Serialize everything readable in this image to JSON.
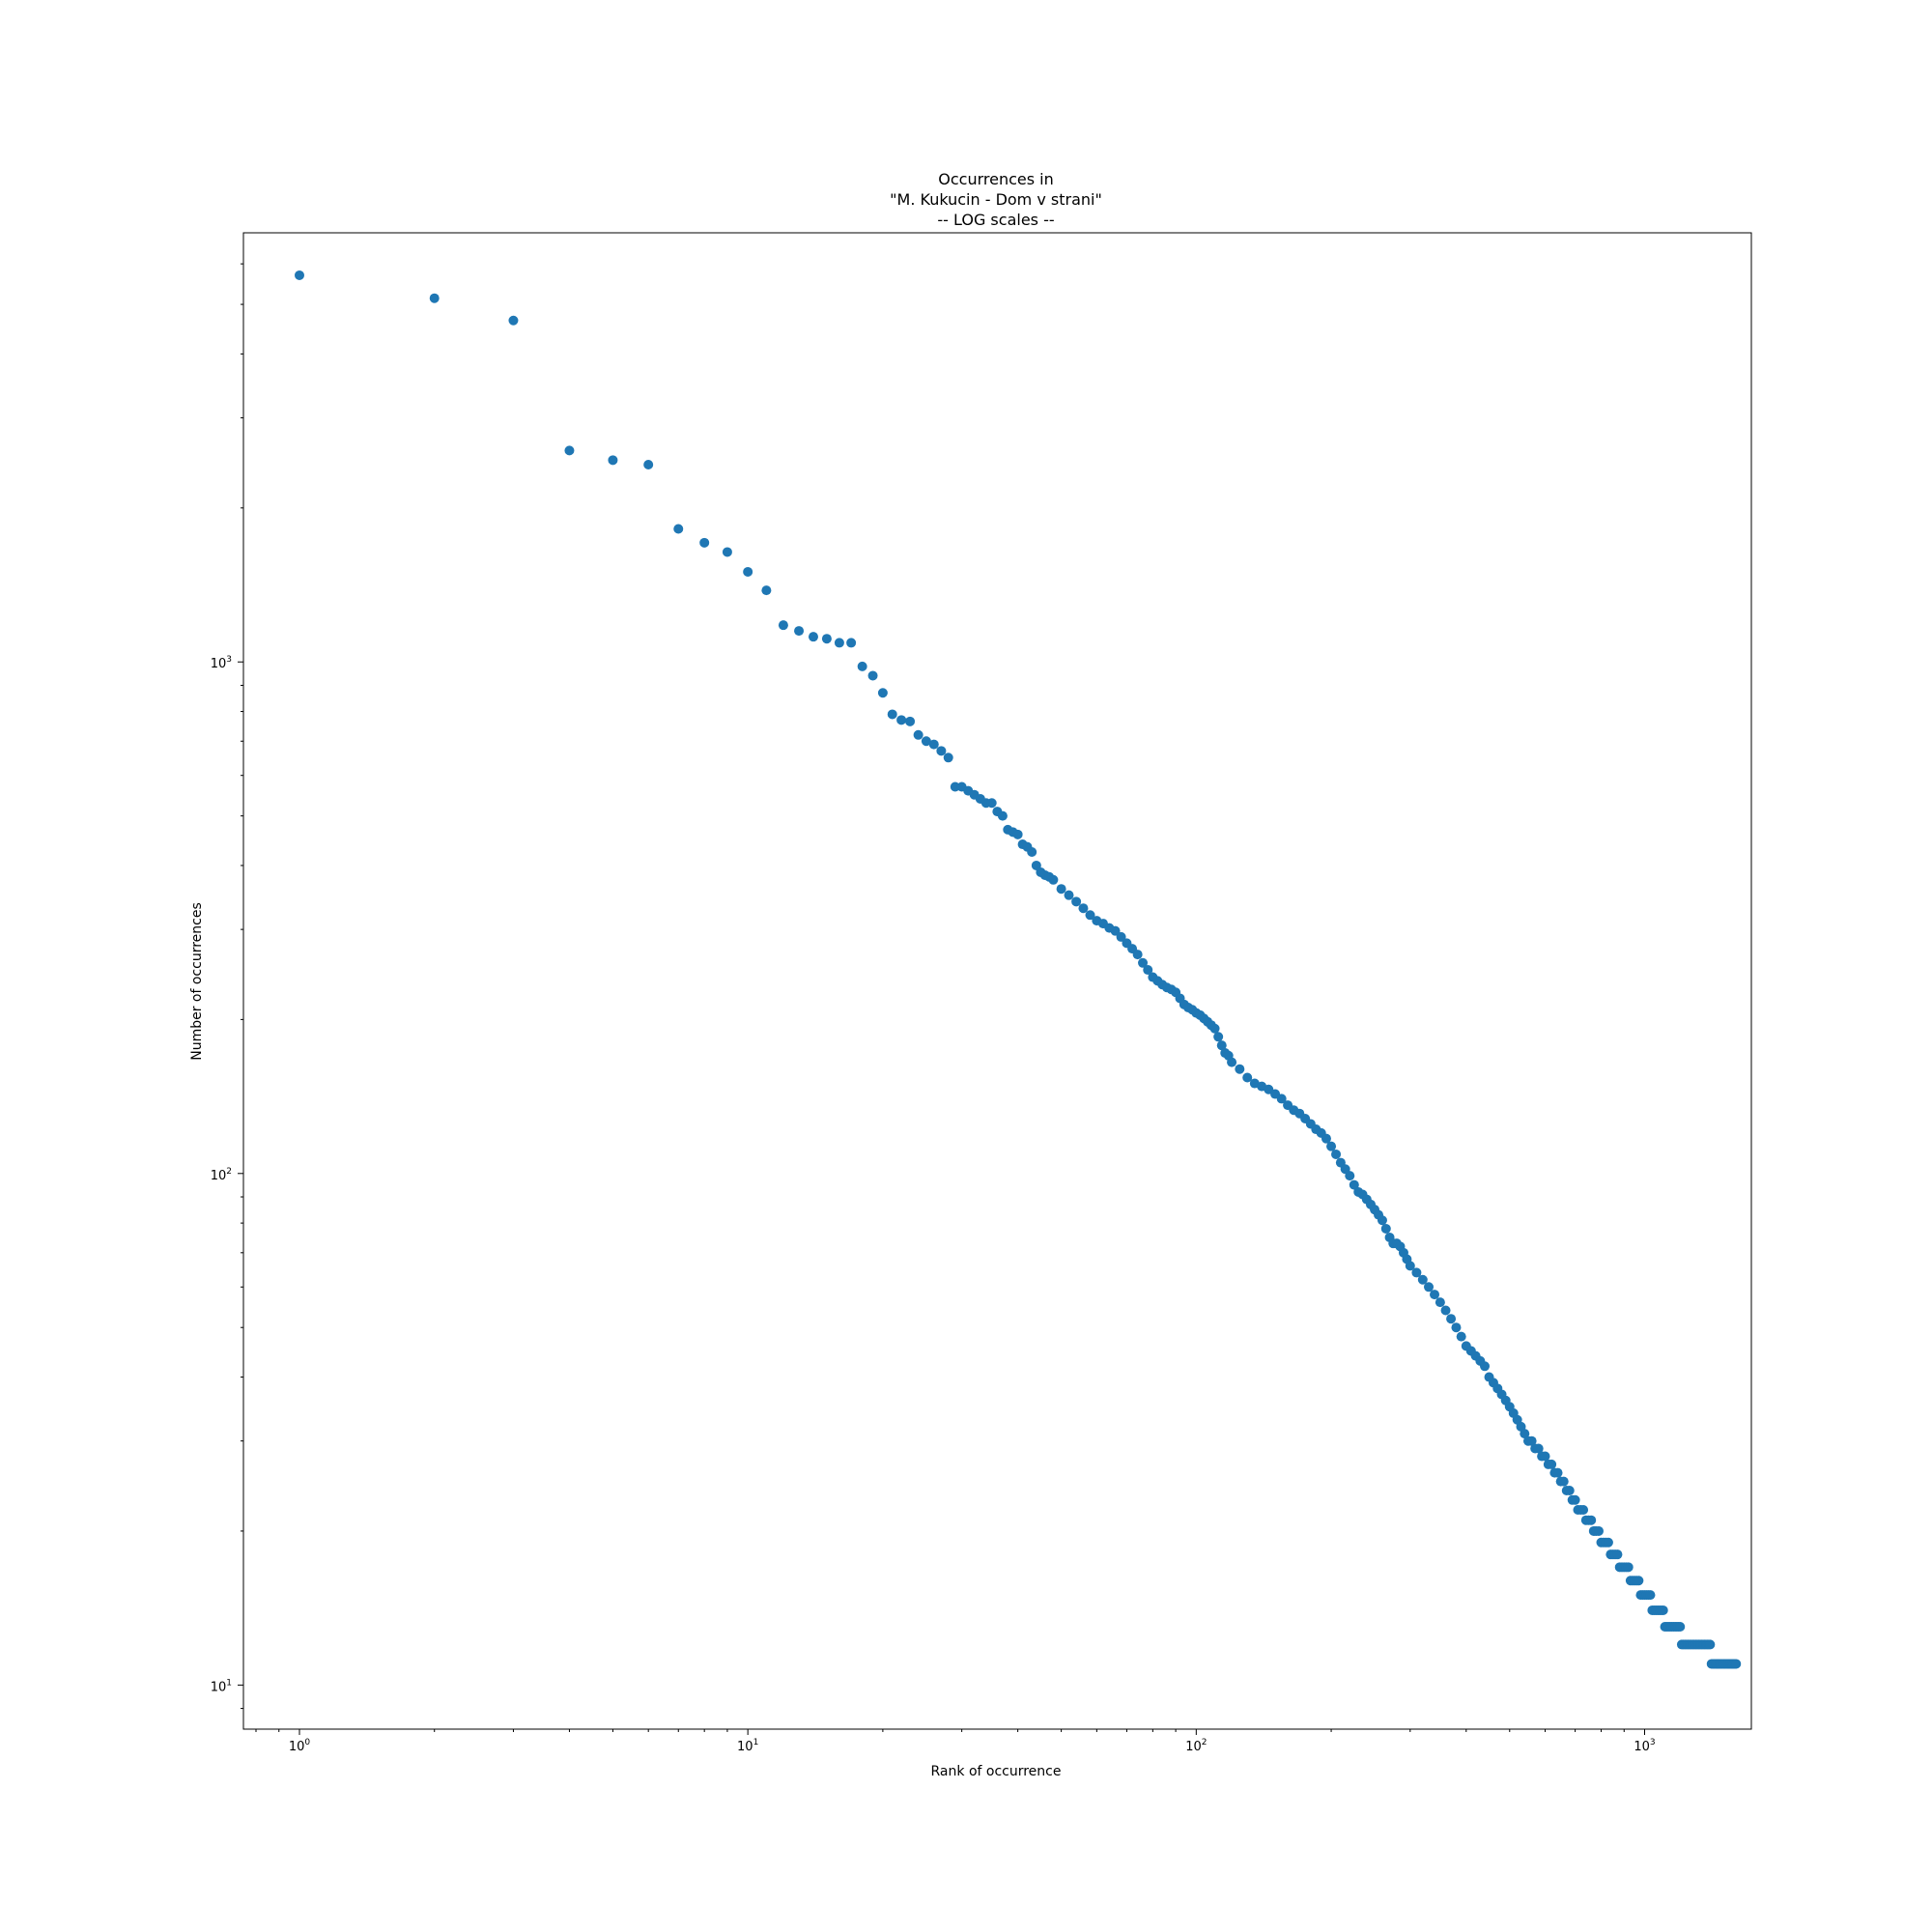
{
  "chart_data": {
    "type": "scatter",
    "title_lines": [
      "Occurrences in",
      "\"M. Kukucin - Dom v strani\"",
      "-- LOG scales --"
    ],
    "xlabel": "Rank of occurrence",
    "ylabel": "Number of occurrences",
    "x_scale": "log",
    "y_scale": "log",
    "xlim": [
      0.75,
      1730
    ],
    "ylim": [
      8.2,
      6900
    ],
    "grid": false,
    "marker_color": "#1f77b4",
    "x_major_ticks": [
      {
        "value": 1,
        "base": "10",
        "exp": "0"
      },
      {
        "value": 10,
        "base": "10",
        "exp": "1"
      },
      {
        "value": 100,
        "base": "10",
        "exp": "2"
      },
      {
        "value": 1000,
        "base": "10",
        "exp": "3"
      }
    ],
    "y_major_ticks": [
      {
        "value": 10,
        "base": "10",
        "exp": "1"
      },
      {
        "value": 100,
        "base": "10",
        "exp": "2"
      },
      {
        "value": 1000,
        "base": "10",
        "exp": "3"
      }
    ],
    "points": [
      [
        1,
        5700
      ],
      [
        2,
        5140
      ],
      [
        3,
        4650
      ],
      [
        4,
        2590
      ],
      [
        5,
        2480
      ],
      [
        6,
        2430
      ],
      [
        7,
        1820
      ],
      [
        8,
        1710
      ],
      [
        9,
        1640
      ],
      [
        10,
        1500
      ],
      [
        11,
        1380
      ],
      [
        12,
        1180
      ],
      [
        13,
        1150
      ],
      [
        14,
        1120
      ],
      [
        15,
        1110
      ],
      [
        16,
        1090
      ],
      [
        17,
        1090
      ],
      [
        18,
        980
      ],
      [
        19,
        940
      ],
      [
        20,
        870
      ],
      [
        21,
        790
      ],
      [
        22,
        770
      ],
      [
        23,
        765
      ],
      [
        24,
        720
      ],
      [
        25,
        700
      ],
      [
        26,
        690
      ],
      [
        27,
        670
      ],
      [
        28,
        650
      ],
      [
        29,
        570
      ],
      [
        30,
        570
      ],
      [
        31,
        560
      ],
      [
        32,
        550
      ],
      [
        33,
        540
      ],
      [
        34,
        530
      ],
      [
        35,
        530
      ],
      [
        36,
        510
      ],
      [
        37,
        500
      ],
      [
        38,
        470
      ],
      [
        39,
        465
      ],
      [
        40,
        460
      ],
      [
        41,
        440
      ],
      [
        42,
        435
      ],
      [
        43,
        425
      ],
      [
        44,
        400
      ],
      [
        45,
        388
      ],
      [
        46,
        383
      ],
      [
        47,
        380
      ],
      [
        48,
        375
      ],
      [
        50,
        360
      ],
      [
        52,
        350
      ],
      [
        54,
        340
      ],
      [
        56,
        330
      ],
      [
        58,
        320
      ],
      [
        60,
        312
      ],
      [
        62,
        308
      ],
      [
        64,
        302
      ],
      [
        66,
        298
      ],
      [
        68,
        290
      ],
      [
        70,
        282
      ],
      [
        72,
        275
      ],
      [
        74,
        268
      ],
      [
        76,
        258
      ],
      [
        78,
        250
      ],
      [
        80,
        242
      ],
      [
        82,
        238
      ],
      [
        84,
        234
      ],
      [
        86,
        231
      ],
      [
        88,
        229
      ],
      [
        90,
        226
      ],
      [
        92,
        220
      ],
      [
        94,
        214
      ],
      [
        96,
        211
      ],
      [
        98,
        209
      ],
      [
        100,
        206
      ],
      [
        102,
        204
      ],
      [
        104,
        201
      ],
      [
        106,
        198
      ],
      [
        108,
        195
      ],
      [
        110,
        192
      ],
      [
        112,
        185
      ],
      [
        114,
        178
      ],
      [
        116,
        172
      ],
      [
        118,
        170
      ],
      [
        120,
        165
      ],
      [
        125,
        160
      ],
      [
        130,
        154
      ],
      [
        135,
        150
      ],
      [
        140,
        148
      ],
      [
        145,
        146
      ],
      [
        150,
        143
      ],
      [
        155,
        140
      ],
      [
        160,
        136
      ],
      [
        165,
        133
      ],
      [
        170,
        131
      ],
      [
        175,
        128
      ],
      [
        180,
        125
      ],
      [
        185,
        122
      ],
      [
        190,
        120
      ],
      [
        195,
        117
      ],
      [
        200,
        113
      ],
      [
        205,
        109
      ],
      [
        210,
        105
      ],
      [
        215,
        102
      ],
      [
        220,
        99
      ],
      [
        225,
        95
      ],
      [
        230,
        92
      ],
      [
        235,
        91
      ],
      [
        240,
        89
      ],
      [
        245,
        87
      ],
      [
        250,
        85
      ],
      [
        255,
        83
      ],
      [
        260,
        81
      ],
      [
        265,
        78
      ],
      [
        270,
        75
      ],
      [
        275,
        73
      ],
      [
        280,
        73
      ],
      [
        285,
        72
      ],
      [
        290,
        70
      ],
      [
        295,
        68
      ],
      [
        300,
        66
      ],
      [
        310,
        64
      ],
      [
        320,
        62
      ],
      [
        330,
        60
      ],
      [
        340,
        58
      ],
      [
        350,
        56
      ],
      [
        360,
        54
      ],
      [
        370,
        52
      ],
      [
        380,
        50
      ],
      [
        390,
        48
      ],
      [
        400,
        46
      ],
      [
        410,
        45
      ],
      [
        420,
        44
      ],
      [
        430,
        43
      ],
      [
        440,
        42
      ],
      [
        450,
        40
      ],
      [
        460,
        39
      ],
      [
        470,
        38
      ],
      [
        480,
        37
      ],
      [
        490,
        36
      ],
      [
        500,
        35
      ],
      [
        510,
        34
      ],
      [
        520,
        33
      ],
      [
        530,
        32
      ],
      [
        540,
        31
      ],
      [
        550,
        30
      ],
      [
        560,
        30
      ],
      [
        570,
        29
      ],
      [
        580,
        29
      ],
      [
        590,
        28
      ],
      [
        600,
        28
      ],
      [
        610,
        27
      ],
      [
        620,
        27
      ],
      [
        630,
        26
      ],
      [
        640,
        26
      ],
      [
        650,
        25
      ],
      [
        660,
        25
      ],
      [
        670,
        24
      ],
      [
        680,
        24
      ],
      [
        690,
        23
      ],
      [
        700,
        23
      ],
      [
        710,
        22
      ],
      [
        720,
        22
      ],
      [
        730,
        22
      ],
      [
        740,
        21
      ],
      [
        750,
        21
      ],
      [
        760,
        21
      ],
      [
        770,
        20
      ],
      [
        780,
        20
      ],
      [
        790,
        20
      ],
      [
        800,
        19
      ],
      [
        810,
        19
      ],
      [
        820,
        19
      ],
      [
        830,
        19
      ],
      [
        840,
        18
      ],
      [
        850,
        18
      ],
      [
        860,
        18
      ],
      [
        870,
        18
      ],
      [
        880,
        17
      ],
      [
        890,
        17
      ],
      [
        900,
        17
      ],
      [
        910,
        17
      ],
      [
        920,
        17
      ],
      [
        930,
        16
      ],
      [
        940,
        16
      ],
      [
        950,
        16
      ],
      [
        960,
        16
      ],
      [
        970,
        16
      ],
      [
        980,
        15
      ],
      [
        990,
        15
      ],
      [
        1000,
        15
      ],
      [
        1010,
        15
      ],
      [
        1020,
        15
      ],
      [
        1030,
        15
      ],
      [
        1040,
        14
      ],
      [
        1050,
        14
      ],
      [
        1060,
        14
      ],
      [
        1070,
        14
      ],
      [
        1080,
        14
      ],
      [
        1090,
        14
      ],
      [
        1100,
        14
      ],
      [
        1110,
        13
      ],
      [
        1120,
        13
      ],
      [
        1130,
        13
      ],
      [
        1140,
        13
      ],
      [
        1150,
        13
      ],
      [
        1160,
        13
      ],
      [
        1170,
        13
      ],
      [
        1180,
        13
      ],
      [
        1190,
        13
      ],
      [
        1200,
        13
      ],
      [
        1210,
        12
      ],
      [
        1220,
        12
      ],
      [
        1230,
        12
      ],
      [
        1240,
        12
      ],
      [
        1250,
        12
      ],
      [
        1260,
        12
      ],
      [
        1270,
        12
      ],
      [
        1280,
        12
      ],
      [
        1290,
        12
      ],
      [
        1300,
        12
      ],
      [
        1310,
        12
      ],
      [
        1320,
        12
      ],
      [
        1330,
        12
      ],
      [
        1340,
        12
      ],
      [
        1350,
        12
      ],
      [
        1360,
        12
      ],
      [
        1370,
        12
      ],
      [
        1380,
        12
      ],
      [
        1390,
        12
      ],
      [
        1400,
        12
      ],
      [
        1410,
        11
      ],
      [
        1420,
        11
      ],
      [
        1430,
        11
      ],
      [
        1440,
        11
      ],
      [
        1450,
        11
      ],
      [
        1460,
        11
      ],
      [
        1470,
        11
      ],
      [
        1480,
        11
      ],
      [
        1490,
        11
      ],
      [
        1500,
        11
      ],
      [
        1510,
        11
      ],
      [
        1520,
        11
      ],
      [
        1530,
        11
      ],
      [
        1540,
        11
      ],
      [
        1550,
        11
      ],
      [
        1560,
        11
      ],
      [
        1570,
        11
      ],
      [
        1580,
        11
      ],
      [
        1590,
        11
      ],
      [
        1600,
        11
      ]
    ]
  }
}
